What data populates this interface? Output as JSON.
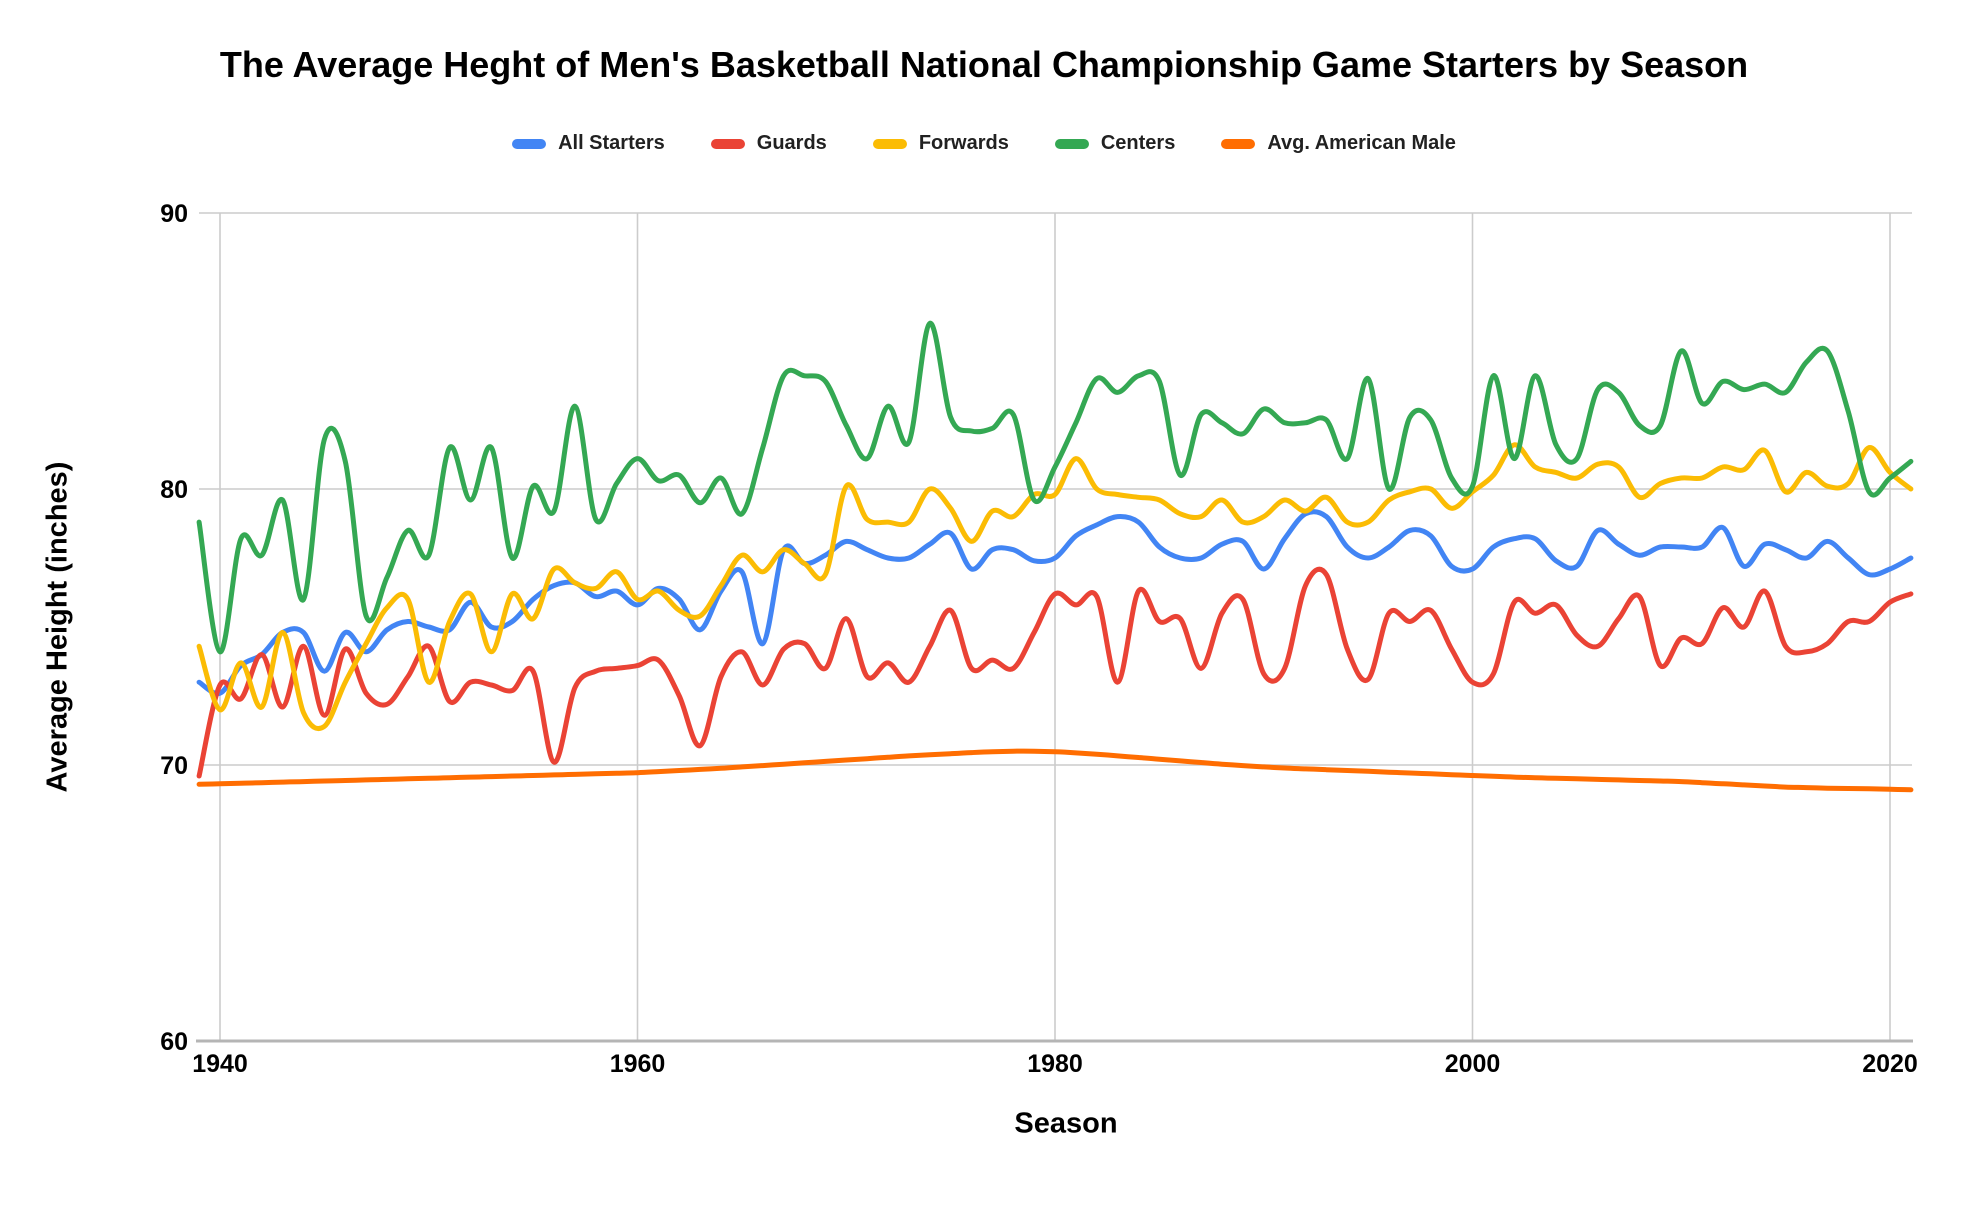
{
  "title": "The Average Heght of Men's Basketball National Championship Game Starters by Season",
  "chart_data": {
    "type": "line",
    "title": "The Average Heght of Men's Basketball National Championship Game Starters by Season",
    "xlabel": "Season",
    "ylabel": "Average Height (inches)",
    "xlim": [
      1939,
      2021
    ],
    "ylim": [
      60,
      90
    ],
    "grid": true,
    "legend_position": "top",
    "line_style": "smooth",
    "x_ticks": [
      1940,
      1960,
      1980,
      2000,
      2020
    ],
    "x_tick_labels": [
      "1940",
      "1960",
      "1980",
      "2000",
      "2020"
    ],
    "y_ticks": [
      60,
      70,
      80,
      90
    ],
    "y_tick_labels": [
      "60",
      "70",
      "80",
      "90"
    ],
    "x_start": 1939,
    "x_end": 2021,
    "grid_color": "#cccccc",
    "baseline_color": "#b5b5b5",
    "series": [
      {
        "name": "All Starters",
        "color": "#4285F4",
        "values": [
          73,
          72.6,
          73.6,
          74,
          74.8,
          74.8,
          73.4,
          74.8,
          74.1,
          74.9,
          75.2,
          75,
          74.9,
          75.9,
          75,
          75.2,
          76,
          76.5,
          76.6,
          76.1,
          76.3,
          75.8,
          76.4,
          76,
          74.9,
          76.3,
          77,
          74.4,
          77.8,
          77.3,
          77.6,
          78.1,
          77.8,
          77.5,
          77.5,
          78,
          78.4,
          77.1,
          77.8,
          77.8,
          77.4,
          77.5,
          78.3,
          78.7,
          79,
          78.8,
          77.9,
          77.5,
          77.5,
          78,
          78.1,
          77.1,
          78.2,
          79.1,
          79,
          77.9,
          77.5,
          77.9,
          78.5,
          78.3,
          77.2,
          77.1,
          77.9,
          78.2,
          78.2,
          77.4,
          77.2,
          78.5,
          78,
          77.6,
          77.9,
          77.9,
          77.9,
          78.6,
          77.2,
          78,
          77.8,
          77.5,
          78.1,
          77.5,
          76.9,
          77.1,
          77.5
        ]
      },
      {
        "name": "Guards",
        "color": "#EA4335",
        "values": [
          69.6,
          72.9,
          72.4,
          74,
          72.1,
          74.3,
          71.8,
          74.2,
          72.6,
          72.2,
          73.2,
          74.3,
          72.3,
          73,
          72.9,
          72.7,
          73.4,
          70.1,
          72.8,
          73.4,
          73.5,
          73.6,
          73.8,
          72.5,
          70.7,
          73.2,
          74.1,
          72.9,
          74.2,
          74.4,
          73.5,
          75.3,
          73.2,
          73.7,
          73,
          74.3,
          75.6,
          73.5,
          73.8,
          73.5,
          74.8,
          76.2,
          75.8,
          76.1,
          73,
          76.3,
          75.2,
          75.3,
          73.5,
          75.5,
          76,
          73.3,
          73.5,
          76.5,
          76.9,
          74.2,
          73.1,
          75.5,
          75.2,
          75.6,
          74.2,
          73,
          73.3,
          75.9,
          75.5,
          75.8,
          74.7,
          74.3,
          75.3,
          76.1,
          73.6,
          74.6,
          74.4,
          75.7,
          75,
          76.3,
          74.3,
          74.1,
          74.4,
          75.2,
          75.2,
          75.9,
          76.2
        ]
      },
      {
        "name": "Forwards",
        "color": "#FBBC04",
        "values": [
          74.3,
          72,
          73.7,
          72.1,
          74.8,
          71.9,
          71.4,
          73,
          74.4,
          75.7,
          76,
          73,
          75.2,
          76.2,
          74.1,
          76.2,
          75.3,
          77.1,
          76.6,
          76.4,
          77,
          76,
          76.3,
          75.6,
          75.4,
          76.5,
          77.6,
          77,
          77.8,
          77.3,
          76.9,
          80.1,
          78.9,
          78.8,
          78.8,
          80,
          79.3,
          78.1,
          79.2,
          79,
          79.8,
          79.8,
          81.1,
          80,
          79.8,
          79.7,
          79.6,
          79.1,
          79,
          79.6,
          78.8,
          79,
          79.6,
          79.2,
          79.7,
          78.8,
          78.8,
          79.6,
          79.9,
          80,
          79.3,
          79.9,
          80.5,
          81.6,
          80.8,
          80.6,
          80.4,
          80.9,
          80.8,
          79.7,
          80.2,
          80.4,
          80.4,
          80.8,
          80.7,
          81.4,
          79.9,
          80.6,
          80.1,
          80.2,
          81.5,
          80.6,
          80
        ]
      },
      {
        "name": "Centers",
        "color": "#34A853",
        "values": [
          78.8,
          74.1,
          78.2,
          77.6,
          79.6,
          76,
          81.8,
          81,
          75.4,
          76.8,
          78.5,
          77.6,
          81.5,
          79.6,
          81.5,
          77.5,
          80.1,
          79.2,
          83,
          78.9,
          80.2,
          81.1,
          80.3,
          80.5,
          79.5,
          80.4,
          79.1,
          81.5,
          84.1,
          84.1,
          83.9,
          82.3,
          81.1,
          83,
          81.7,
          86,
          82.6,
          82.1,
          82.2,
          82.7,
          79.6,
          80.8,
          82.4,
          84,
          83.5,
          84.1,
          83.9,
          80.5,
          82.7,
          82.4,
          82,
          82.9,
          82.4,
          82.4,
          82.5,
          81.1,
          84,
          80,
          82.6,
          82.5,
          80.4,
          80.1,
          84.1,
          81.1,
          84.1,
          81.6,
          81.1,
          83.6,
          83.5,
          82.3,
          82.3,
          85,
          83.1,
          83.9,
          83.6,
          83.8,
          83.5,
          84.6,
          85,
          82.8,
          79.9,
          80.4,
          81
        ]
      },
      {
        "name": "Avg. American Male",
        "color": "#FF6D01",
        "values": [
          69.3,
          69.32,
          69.34,
          69.36,
          69.38,
          69.4,
          69.42,
          69.44,
          69.46,
          69.48,
          69.5,
          69.52,
          69.54,
          69.56,
          69.58,
          69.6,
          69.62,
          69.64,
          69.66,
          69.68,
          69.7,
          69.72,
          69.76,
          69.8,
          69.84,
          69.88,
          69.93,
          69.98,
          70.03,
          70.08,
          70.13,
          70.18,
          70.23,
          70.28,
          70.33,
          70.37,
          70.41,
          70.45,
          70.48,
          70.5,
          70.5,
          70.48,
          70.44,
          70.39,
          70.33,
          70.27,
          70.21,
          70.15,
          70.09,
          70.03,
          69.98,
          69.93,
          69.89,
          69.86,
          69.83,
          69.8,
          69.77,
          69.74,
          69.71,
          69.68,
          69.65,
          69.62,
          69.59,
          69.56,
          69.54,
          69.52,
          69.5,
          69.48,
          69.46,
          69.44,
          69.42,
          69.4,
          69.36,
          69.32,
          69.28,
          69.24,
          69.2,
          69.18,
          69.16,
          69.15,
          69.14,
          69.12,
          69.1
        ]
      }
    ]
  }
}
